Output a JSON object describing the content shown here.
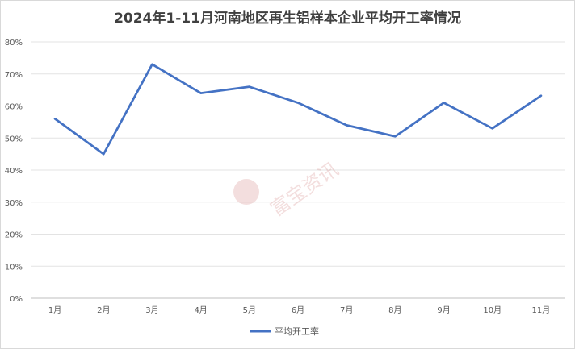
{
  "chart_data": {
    "type": "line",
    "title": "2024年1-11月河南地区再生铝样本企业平均开工率情况",
    "categories": [
      "1月",
      "2月",
      "3月",
      "4月",
      "5月",
      "6月",
      "7月",
      "8月",
      "9月",
      "10月",
      "11月"
    ],
    "series": [
      {
        "name": "平均开工率",
        "values": [
          56,
          45,
          73,
          64,
          66,
          61,
          54,
          50.5,
          61,
          53,
          63.2
        ],
        "color": "#4472C4"
      }
    ],
    "ylim": [
      0,
      80
    ],
    "yticks": [
      "0%",
      "10%",
      "20%",
      "30%",
      "40%",
      "50%",
      "60%",
      "70%",
      "80%"
    ],
    "grid": true,
    "legend_position": "bottom"
  },
  "watermark": {
    "text": "富宝资讯"
  }
}
